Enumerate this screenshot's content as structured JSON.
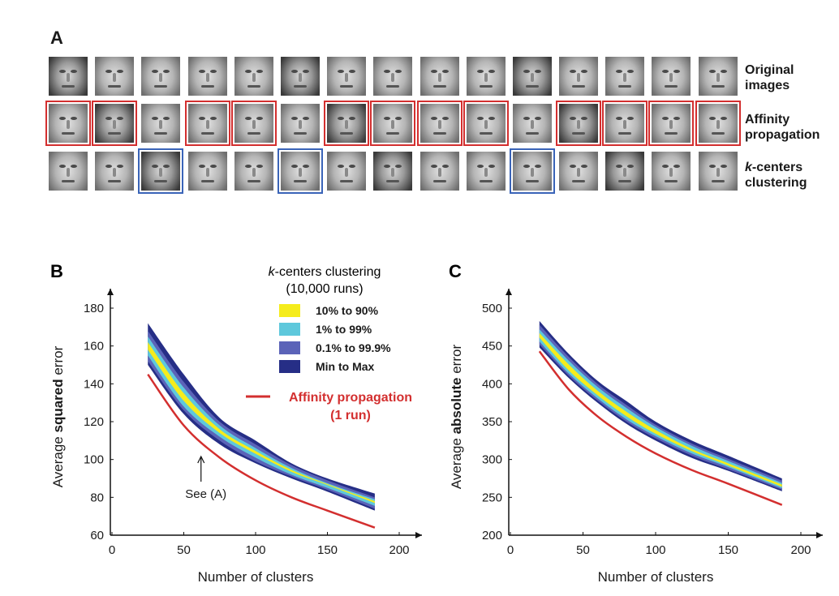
{
  "panel_a": {
    "letter": "A",
    "row_labels": [
      {
        "line1": "Original",
        "line2": "images"
      },
      {
        "line1": "Affinity",
        "line2": "propagation"
      },
      {
        "line1_italic": "k",
        "line1_rest": "-centers",
        "line2": "clustering"
      }
    ],
    "rows": [
      {
        "highlight": [],
        "color": ""
      },
      {
        "highlight": [
          0,
          1,
          3,
          4,
          6,
          7,
          8,
          9,
          11,
          12,
          13,
          14
        ],
        "color": "#d32f2f"
      },
      {
        "highlight": [
          2,
          5,
          10
        ],
        "color": "#3a64b8"
      }
    ]
  },
  "legend": {
    "title_italic": "k",
    "title_rest": "-centers clustering",
    "subtitle": "(10,000 runs)",
    "items": [
      {
        "label": "10% to 90%",
        "color": "#f5ec1c"
      },
      {
        "label": "1% to 99%",
        "color": "#5ec8dc"
      },
      {
        "label": "0.1% to 99.9%",
        "color": "#5b63b8"
      },
      {
        "label": "Min to Max",
        "color": "#262e86"
      }
    ],
    "ap_label_line1": "Affinity propagation",
    "ap_label_line2": "(1 run)",
    "ap_color": "#d32f2f"
  },
  "chart_data": [
    {
      "panel": "B",
      "type": "area",
      "title": "",
      "xlabel": "Number of clusters",
      "ylabel_pre": "Average ",
      "ylabel_bold": "squared",
      "ylabel_post": " error",
      "xlim": [
        0,
        200
      ],
      "ylim": [
        60,
        180
      ],
      "xticks": [
        0,
        50,
        100,
        150,
        200
      ],
      "yticks": [
        60,
        80,
        100,
        120,
        140,
        160,
        180
      ],
      "x": [
        25,
        50,
        75,
        100,
        125,
        150,
        183
      ],
      "bands": [
        {
          "name": "Min to Max",
          "lower": [
            150,
            124,
            108,
            98,
            90,
            83,
            73
          ],
          "upper": [
            172,
            145,
            122,
            110,
            98,
            90,
            82
          ]
        },
        {
          "name": "0.1% to 99.9%",
          "lower": [
            152,
            126,
            110,
            99,
            91,
            84,
            74
          ],
          "upper": [
            168,
            141,
            120,
            108,
            97,
            89,
            80
          ]
        },
        {
          "name": "1% to 99%",
          "lower": [
            155,
            128,
            112,
            101,
            92,
            85,
            75.5
          ],
          "upper": [
            165,
            138,
            118,
            106,
            95.5,
            87.5,
            79
          ]
        },
        {
          "name": "10% to 90%",
          "lower": [
            158,
            131,
            114,
            103,
            93.5,
            86.5,
            77
          ],
          "upper": [
            162,
            135,
            116,
            104.5,
            94.5,
            87,
            78
          ]
        }
      ],
      "affinity_propagation": {
        "x": [
          25,
          50,
          75,
          100,
          125,
          150,
          183
        ],
        "y": [
          145,
          118,
          101,
          89,
          80,
          73,
          64
        ]
      },
      "annotation": {
        "text": "See (A)",
        "x": 62,
        "y": 102
      }
    },
    {
      "panel": "C",
      "type": "area",
      "title": "",
      "xlabel": "Number of clusters",
      "ylabel_pre": "Average ",
      "ylabel_bold": "absolute",
      "ylabel_post": " error",
      "xlim": [
        0,
        200
      ],
      "ylim": [
        200,
        500
      ],
      "xticks": [
        0,
        50,
        100,
        150,
        200
      ],
      "yticks": [
        200,
        250,
        300,
        350,
        400,
        450,
        500
      ],
      "x": [
        20,
        40,
        60,
        80,
        100,
        125,
        150,
        187
      ],
      "bands": [
        {
          "name": "Min to Max",
          "lower": [
            448,
            408,
            375,
            347,
            325,
            302,
            285,
            258
          ],
          "upper": [
            483,
            440,
            404,
            377,
            350,
            325,
            305,
            275
          ]
        },
        {
          "name": "0.1% to 99.9%",
          "lower": [
            452,
            411,
            378,
            350,
            328,
            305,
            287,
            260
          ],
          "upper": [
            478,
            436,
            400,
            372,
            346,
            321,
            301,
            272
          ]
        },
        {
          "name": "1% to 99%",
          "lower": [
            456,
            414,
            381,
            353,
            331,
            308,
            290,
            262
          ],
          "upper": [
            472,
            431,
            396,
            368,
            343,
            318,
            298,
            269
          ]
        },
        {
          "name": "10% to 90%",
          "lower": [
            461,
            418,
            385,
            357,
            334,
            311,
            292,
            264
          ],
          "upper": [
            467,
            426,
            391,
            363,
            339,
            314,
            295,
            267
          ]
        }
      ],
      "affinity_propagation": {
        "x": [
          20,
          40,
          60,
          80,
          100,
          125,
          150,
          187
        ],
        "y": [
          443,
          393,
          357,
          330,
          308,
          286,
          268,
          240
        ]
      }
    }
  ]
}
